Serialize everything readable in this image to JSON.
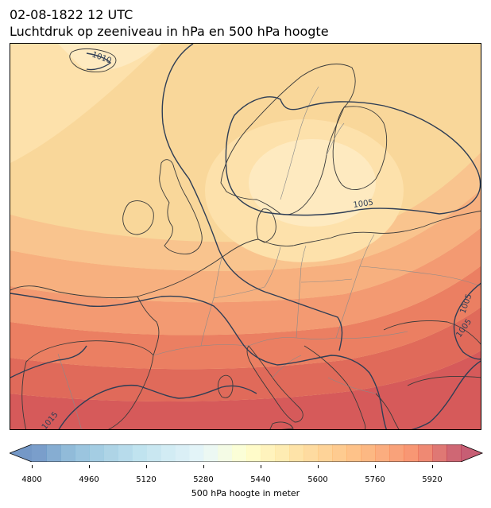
{
  "header": {
    "datetime": "02-08-1822 12 UTC",
    "subtitle": "Luchtdruk op zeeniveau in hPa en 500 hPa hoogte"
  },
  "map": {
    "projection": "europe",
    "land_outline_color": "#3a3a3a",
    "border_color": "#8a8a8a",
    "isobar_color": "#2f3e55",
    "isobar_labels": [
      "1010",
      "1005",
      "1005",
      "1005",
      "1015"
    ]
  },
  "colorbar": {
    "label": "500 hPa hoogte in meter",
    "min": 4800,
    "max": 6000,
    "step": 40,
    "ticks": [
      "4800",
      "4960",
      "5120",
      "5280",
      "5440",
      "5600",
      "5760",
      "5920"
    ],
    "extend": "both",
    "colormap": "RdYlBu_r"
  }
}
